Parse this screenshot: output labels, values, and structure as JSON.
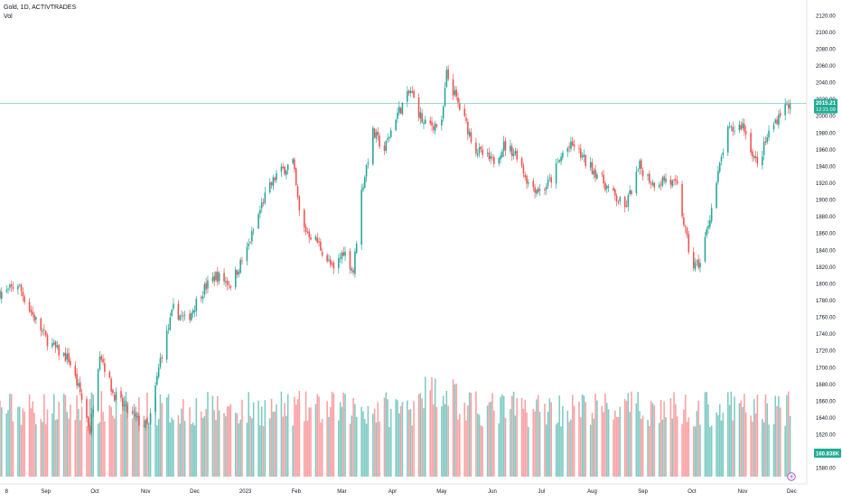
{
  "header": {
    "title": "Gold, 1D, ACTIVTRADES",
    "volume_label": "Vol"
  },
  "price_badge": {
    "price": "2015.21",
    "countdown": "12:21:09"
  },
  "volume_badge": "160.838K",
  "colors": {
    "up": "#26a69a",
    "down": "#ef5350",
    "up_volume": "#80cbc4",
    "down_volume": "#faa1a4",
    "badge": "#22ab94",
    "price_line": "#26a69a",
    "axis_text": "#131722"
  },
  "chart_data": {
    "type": "candlestick",
    "title": "Gold, 1D, ACTIVTRADES",
    "y_axis": {
      "position": "right",
      "range": [
        1570,
        2130
      ],
      "ticks": [
        "2120.00",
        "2100.00",
        "2080.00",
        "2060.00",
        "2040.00",
        "2020.00",
        "2000.00",
        "1980.00",
        "1960.00",
        "1940.00",
        "1920.00",
        "1900.00",
        "1880.00",
        "1860.00",
        "1840.00",
        "1820.00",
        "1800.00",
        "1780.00",
        "1760.00",
        "1740.00",
        "1720.00",
        "1700.00",
        "1680.00",
        "1660.00",
        "1640.00",
        "1620.00",
        "1600.00",
        "1580.00"
      ]
    },
    "x_axis": {
      "ticks": [
        {
          "label": "8",
          "date": "2022-08-08"
        },
        {
          "label": "Sep",
          "date": "2022-09-01"
        },
        {
          "label": "Oct",
          "date": "2022-10-01"
        },
        {
          "label": "Nov",
          "date": "2022-11-01"
        },
        {
          "label": "Dec",
          "date": "2022-12-01"
        },
        {
          "label": "2023",
          "date": "2023-01-01"
        },
        {
          "label": "Feb",
          "date": "2023-02-01"
        },
        {
          "label": "Mar",
          "date": "2023-03-01"
        },
        {
          "label": "Apr",
          "date": "2023-04-01"
        },
        {
          "label": "May",
          "date": "2023-05-01"
        },
        {
          "label": "Jun",
          "date": "2023-06-01"
        },
        {
          "label": "Jul",
          "date": "2023-07-01"
        },
        {
          "label": "Aug",
          "date": "2023-08-01"
        },
        {
          "label": "Sep",
          "date": "2023-09-01"
        },
        {
          "label": "Oct",
          "date": "2023-10-01"
        },
        {
          "label": "Nov",
          "date": "2023-11-01"
        },
        {
          "label": "Dec",
          "date": "2023-12-01"
        }
      ]
    },
    "last_price": 2015.21,
    "close_path": [
      [
        "2022-08-08",
        1790
      ],
      [
        "2022-08-15",
        1800
      ],
      [
        "2022-08-22",
        1770
      ],
      [
        "2022-09-01",
        1735
      ],
      [
        "2022-09-08",
        1720
      ],
      [
        "2022-09-15",
        1710
      ],
      [
        "2022-09-22",
        1670
      ],
      [
        "2022-09-28",
        1625
      ],
      [
        "2022-10-04",
        1720
      ],
      [
        "2022-10-12",
        1670
      ],
      [
        "2022-10-20",
        1650
      ],
      [
        "2022-10-28",
        1635
      ],
      [
        "2022-11-03",
        1630
      ],
      [
        "2022-11-10",
        1710
      ],
      [
        "2022-11-18",
        1770
      ],
      [
        "2022-11-26",
        1755
      ],
      [
        "2022-12-05",
        1790
      ],
      [
        "2022-12-14",
        1810
      ],
      [
        "2022-12-23",
        1800
      ],
      [
        "2023-01-02",
        1840
      ],
      [
        "2023-01-12",
        1900
      ],
      [
        "2023-01-20",
        1930
      ],
      [
        "2023-01-30",
        1945
      ],
      [
        "2023-02-04",
        1870
      ],
      [
        "2023-02-14",
        1850
      ],
      [
        "2023-02-24",
        1815
      ],
      [
        "2023-03-02",
        1840
      ],
      [
        "2023-03-08",
        1815
      ],
      [
        "2023-03-13",
        1910
      ],
      [
        "2023-03-20",
        1980
      ],
      [
        "2023-03-27",
        1960
      ],
      [
        "2023-04-03",
        2000
      ],
      [
        "2023-04-12",
        2030
      ],
      [
        "2023-04-20",
        1990
      ],
      [
        "2023-05-01",
        1990
      ],
      [
        "2023-05-04",
        2050
      ],
      [
        "2023-05-12",
        2010
      ],
      [
        "2023-05-22",
        1960
      ],
      [
        "2023-06-01",
        1945
      ],
      [
        "2023-06-08",
        1965
      ],
      [
        "2023-06-16",
        1955
      ],
      [
        "2023-06-23",
        1920
      ],
      [
        "2023-07-01",
        1910
      ],
      [
        "2023-07-07",
        1925
      ],
      [
        "2023-07-15",
        1960
      ],
      [
        "2023-07-21",
        1965
      ],
      [
        "2023-07-28",
        1945
      ],
      [
        "2023-08-05",
        1930
      ],
      [
        "2023-08-12",
        1910
      ],
      [
        "2023-08-21",
        1890
      ],
      [
        "2023-08-30",
        1940
      ],
      [
        "2023-09-07",
        1920
      ],
      [
        "2023-09-15",
        1925
      ],
      [
        "2023-09-22",
        1915
      ],
      [
        "2023-10-01",
        1820
      ],
      [
        "2023-10-06",
        1825
      ],
      [
        "2023-10-14",
        1900
      ],
      [
        "2023-10-22",
        1980
      ],
      [
        "2023-11-01",
        1990
      ],
      [
        "2023-11-10",
        1940
      ],
      [
        "2023-11-17",
        1980
      ],
      [
        "2023-11-24",
        2005
      ],
      [
        "2023-11-29",
        2015
      ]
    ],
    "volume": {
      "label": "Vol",
      "last_value": "160.838K"
    }
  }
}
